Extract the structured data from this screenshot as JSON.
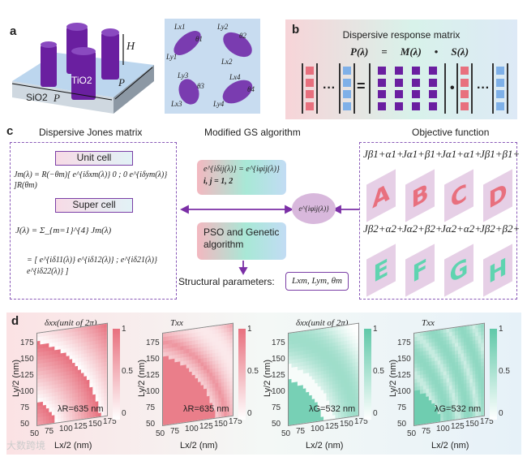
{
  "panel_a": {
    "label": "a",
    "tio2": "TiO2",
    "sio2": "SiO2",
    "period": "P",
    "period2": "P",
    "height": "H",
    "ellipses": [
      {
        "lx": "Lx1",
        "ly": "Ly1",
        "theta": "θ1"
      },
      {
        "lx": "Lx2",
        "ly": "Ly2",
        "theta": "θ2"
      },
      {
        "lx": "Lx3",
        "ly": "Ly3",
        "theta": "θ3"
      },
      {
        "lx": "Lx4",
        "ly": "Ly4",
        "theta": "θ4"
      }
    ]
  },
  "panel_b": {
    "label": "b",
    "title": "Dispersive response matrix",
    "eq_p": "P(λ)",
    "eq_eq": "=",
    "eq_m": "M(λ)",
    "eq_dot": "•",
    "eq_s": "S(λ)",
    "ellipsis": "···",
    "equals": "=",
    "dot": "•"
  },
  "panel_c": {
    "label": "c",
    "jones_title": "Dispersive Jones matrix",
    "unit_cell": "Unit cell",
    "unit_eq": "Jm(λ) = R(−θm)[ e^{iδxm(λ)}  0 ; 0  e^{iδym(λ)} ]R(θm)",
    "super_cell": "Super cell",
    "super_eq": "J(λ) = Σ_{m=1}^{4} Jm(λ)",
    "super_eq2": "= [ e^{iδ11(λ)}  e^{iδ12(λ)} ; e^{iδ21(λ)}  e^{iδ22(λ)} ]",
    "gs_title": "Modified GS algorithm",
    "gs_eq": "e^{iδij(λ)} = e^{iφij(λ)}",
    "gs_idx": "i, j = 1, 2",
    "phase": "e^{iφij(λ)}",
    "pso": "PSO and Genetic algorithm",
    "struct_label": "Structural parameters:",
    "struct_vals": "Lxm, Lym, θm",
    "obj_title": "Objective function",
    "targets": [
      {
        "j": "Jβ1+α1+",
        "letter": "A",
        "color": "#e8707e"
      },
      {
        "j": "Jα1+β1+",
        "letter": "B",
        "color": "#e8707e"
      },
      {
        "j": "Jα1+α1+",
        "letter": "C",
        "color": "#e8707e"
      },
      {
        "j": "Jβ1+β1+",
        "letter": "D",
        "color": "#e8707e"
      },
      {
        "j": "Jβ2+α2+",
        "letter": "E",
        "color": "#5fd4b0"
      },
      {
        "j": "Jα2+β2+",
        "letter": "F",
        "color": "#5fd4b0"
      },
      {
        "j": "Jα2+α2+",
        "letter": "G",
        "color": "#5fd4b0"
      },
      {
        "j": "Jβ2+β2+",
        "letter": "H",
        "color": "#5fd4b0"
      }
    ]
  },
  "panel_d": {
    "label": "d",
    "xlabel": "Lx/2 (nm)",
    "ylabel": "Ly/2 (nm)",
    "ticks": [
      "50",
      "75",
      "100",
      "125",
      "150",
      "175"
    ],
    "cb_ticks": [
      "1",
      "0.5",
      "0"
    ],
    "plots": [
      {
        "title": "δxx(unit of 2π)",
        "wl": "λR=635 nm",
        "color": "#e8707e",
        "kind": "phase"
      },
      {
        "title": "Txx",
        "wl": "λR=635 nm",
        "color": "#e8707e",
        "kind": "trans"
      },
      {
        "title": "δxx(unit of 2π)",
        "wl": "λG=532 nm",
        "color": "#5fc8a8",
        "kind": "phase"
      },
      {
        "title": "Txx",
        "wl": "λG=532 nm",
        "color": "#5fc8a8",
        "kind": "trans"
      }
    ]
  },
  "watermark": "大数跨境"
}
